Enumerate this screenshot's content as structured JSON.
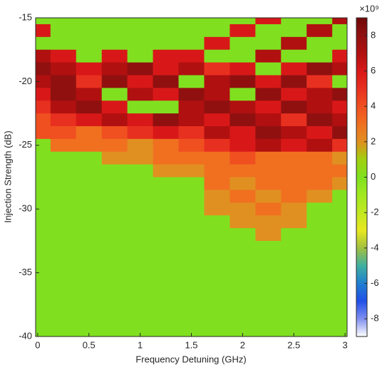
{
  "chart_data": {
    "type": "heatmap",
    "xlabel": "Frequency Detuning (GHz)",
    "ylabel": "Injection Strength (dB)",
    "x": [
      0,
      0.25,
      0.5,
      0.75,
      1,
      1.25,
      1.5,
      1.75,
      2,
      2.25,
      2.5,
      2.75,
      3
    ],
    "y": [
      -15,
      -16,
      -17,
      -18,
      -19,
      -20,
      -21,
      -22,
      -23,
      -24,
      -25,
      -26,
      -27,
      -28,
      -29,
      -30,
      -31,
      -32,
      -33,
      -34,
      -35,
      -36,
      -37,
      -38,
      -39,
      -40
    ],
    "z": [
      [
        0,
        0,
        0,
        0,
        0,
        0,
        0,
        0,
        0,
        6,
        0,
        0,
        7
      ],
      [
        6,
        0,
        0,
        0,
        0,
        0,
        0,
        0,
        6,
        0,
        0,
        7,
        0
      ],
      [
        0,
        0,
        0,
        0,
        0,
        0,
        0,
        6,
        0,
        0,
        7,
        0,
        0
      ],
      [
        7,
        6,
        0,
        6,
        0,
        6,
        6,
        0,
        0,
        7,
        0,
        0,
        6
      ],
      [
        8,
        7,
        6,
        7,
        8,
        6,
        7,
        5,
        6,
        0,
        6,
        8,
        7
      ],
      [
        7,
        8,
        5,
        8,
        6,
        8,
        0,
        7,
        8,
        6,
        8,
        5,
        0
      ],
      [
        6,
        8,
        7,
        0,
        7,
        6,
        8,
        7,
        0,
        8,
        6,
        7,
        8
      ],
      [
        5,
        7,
        8,
        6,
        0,
        0,
        7,
        8,
        7,
        6,
        8,
        7,
        6
      ],
      [
        4,
        5,
        6,
        7,
        6,
        8,
        7,
        6,
        8,
        7,
        5,
        8,
        7
      ],
      [
        4,
        4,
        3,
        4,
        5,
        6,
        5,
        7,
        6,
        8,
        7,
        6,
        8
      ],
      [
        0,
        3,
        3,
        3,
        2,
        3,
        4,
        5,
        6,
        7,
        6,
        7,
        5
      ],
      [
        0,
        0,
        0,
        2,
        2,
        3,
        3,
        3,
        4,
        3,
        3,
        3,
        2
      ],
      [
        0,
        0,
        0,
        0,
        0,
        2,
        2,
        3,
        3,
        3,
        3,
        3,
        3
      ],
      [
        0,
        0,
        0,
        0,
        0,
        0,
        0,
        3,
        2,
        3,
        3,
        3,
        2
      ],
      [
        0,
        0,
        0,
        0,
        0,
        0,
        0,
        2,
        3,
        2,
        3,
        2,
        0
      ],
      [
        0,
        0,
        0,
        0,
        0,
        0,
        0,
        2,
        2,
        3,
        2,
        0,
        0
      ],
      [
        0,
        0,
        0,
        0,
        0,
        0,
        0,
        0,
        2,
        2,
        2,
        0,
        0
      ],
      [
        0,
        0,
        0,
        0,
        0,
        0,
        0,
        0,
        0,
        2,
        0,
        0,
        0
      ],
      [
        0,
        0,
        0,
        0,
        0,
        0,
        0,
        0,
        0,
        0,
        0,
        0,
        0
      ],
      [
        0,
        0,
        0,
        0,
        0,
        0,
        0,
        0,
        0,
        0,
        0,
        0,
        0
      ],
      [
        0,
        0,
        0,
        0,
        0,
        0,
        0,
        0,
        0,
        0,
        0,
        0,
        0
      ],
      [
        0,
        0,
        0,
        0,
        0,
        0,
        0,
        0,
        0,
        0,
        0,
        0,
        0
      ],
      [
        0,
        0,
        0,
        0,
        0,
        0,
        0,
        0,
        0,
        0,
        0,
        0,
        0
      ],
      [
        0,
        0,
        0,
        0,
        0,
        0,
        0,
        0,
        0,
        0,
        0,
        0,
        0
      ],
      [
        0,
        0,
        0,
        0,
        0,
        0,
        0,
        0,
        0,
        0,
        0,
        0,
        0
      ],
      [
        0,
        0,
        0,
        0,
        0,
        0,
        0,
        0,
        0,
        0,
        0,
        0,
        0
      ]
    ],
    "xlim": [
      -0.02,
      3.02
    ],
    "xticks": [
      0,
      0.5,
      1,
      1.5,
      2,
      2.5,
      3
    ],
    "ylim": [
      -40,
      -15
    ],
    "yticks": [
      -40,
      -35,
      -30,
      -25,
      -20,
      -15
    ],
    "clim": [
      -9,
      9
    ],
    "cticks": [
      -8,
      -6,
      -4,
      -2,
      0,
      2,
      4,
      6,
      8
    ],
    "colorbar_scale": "×10⁹",
    "colormap": [
      "#ffffff",
      "#8090f0",
      "#2050e8",
      "#1f7fd0",
      "#40b0a0",
      "#a0c040",
      "#e8e820",
      "#c0e820",
      "#a0e820",
      "#80e020",
      "#a0d010",
      "#e09020",
      "#f07020",
      "#f05020",
      "#e83020",
      "#d81818",
      "#b01010",
      "#901010",
      "#700808"
    ]
  }
}
